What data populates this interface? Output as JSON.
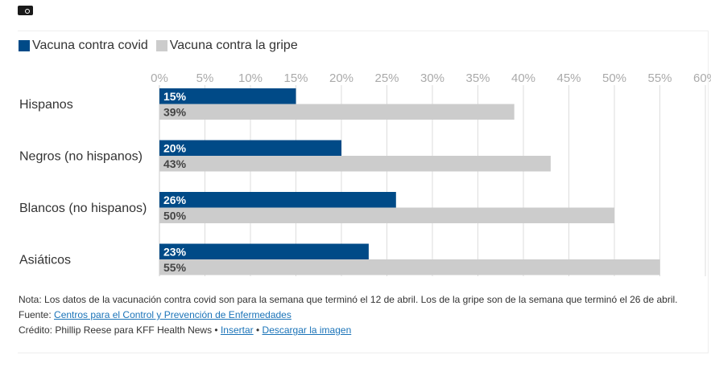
{
  "chart_data": {
    "type": "bar",
    "orientation": "horizontal",
    "categories": [
      "Hispanos",
      "Negros (no hispanos)",
      "Blancos (no hispanos)",
      "Asiáticos"
    ],
    "series": [
      {
        "name": "Vacuna contra covid",
        "color": "#004a87",
        "values": [
          15,
          20,
          26,
          23
        ],
        "labels": [
          "15%",
          "20%",
          "26%",
          "23%"
        ]
      },
      {
        "name": "Vacuna contra la gripe",
        "color": "#cccccc",
        "values": [
          39,
          43,
          50,
          55
        ],
        "labels": [
          "39%",
          "43%",
          "50%",
          "55%"
        ]
      }
    ],
    "xlim": [
      0,
      60
    ],
    "xticks": [
      "0%",
      "5%",
      "10%",
      "15%",
      "20%",
      "25%",
      "30%",
      "35%",
      "40%",
      "45%",
      "50%",
      "55%",
      "60%"
    ],
    "grid": true,
    "legend": "top-left"
  },
  "notes": {
    "nota": "Nota: Los datos de la vacunación contra covid son para la semana que terminó el 12 de abril. Los de la gripe son de la semana que terminó el 26 de abril.",
    "fuente_label": "Fuente: ",
    "fuente_link": "Centros para el Control y Prevención de Enfermedades",
    "credito": "Crédito: Phillip Reese para KFF Health News • ",
    "insertar": "Insertar",
    "sep": " • ",
    "descargar": "Descargar la imagen"
  }
}
